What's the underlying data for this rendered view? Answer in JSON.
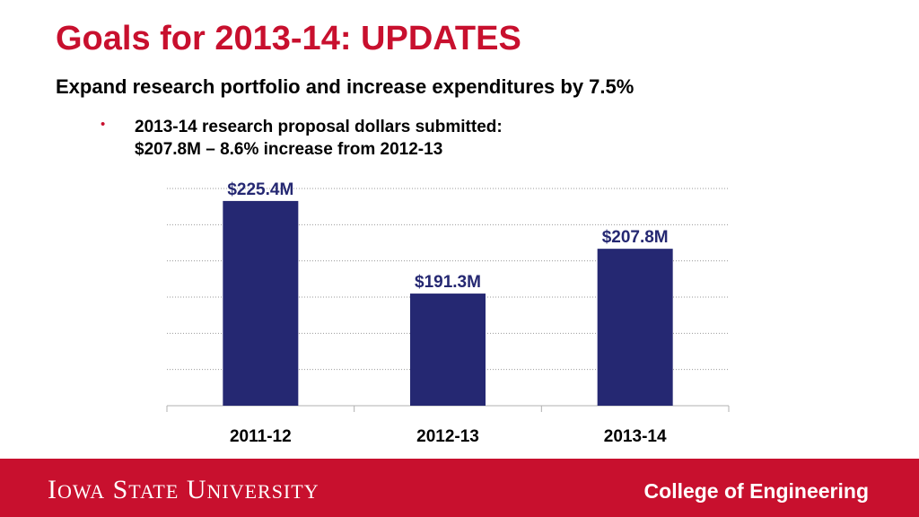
{
  "slide": {
    "title": "Goals for 2013-14: UPDATES",
    "subtitle": "Expand research portfolio and increase expenditures by 7.5%",
    "bullet": {
      "line1": "2013-14 research proposal dollars submitted:",
      "line2": "$207.8M – 8.6% increase from 2012-13"
    }
  },
  "footer": {
    "logo_text": "Iowa State University",
    "college": "College of Engineering"
  },
  "colors": {
    "accent": "#c8102e",
    "bar": "#252872",
    "label": "#252872"
  },
  "chart_data": {
    "type": "bar",
    "categories": [
      "2011-12",
      "2012-13",
      "2013-14"
    ],
    "values": [
      225.4,
      191.3,
      207.8
    ],
    "data_labels": [
      "$225.4M",
      "$191.3M",
      "$207.8M"
    ],
    "ylim": [
      150,
      230
    ],
    "grid": true,
    "legend": "none"
  }
}
